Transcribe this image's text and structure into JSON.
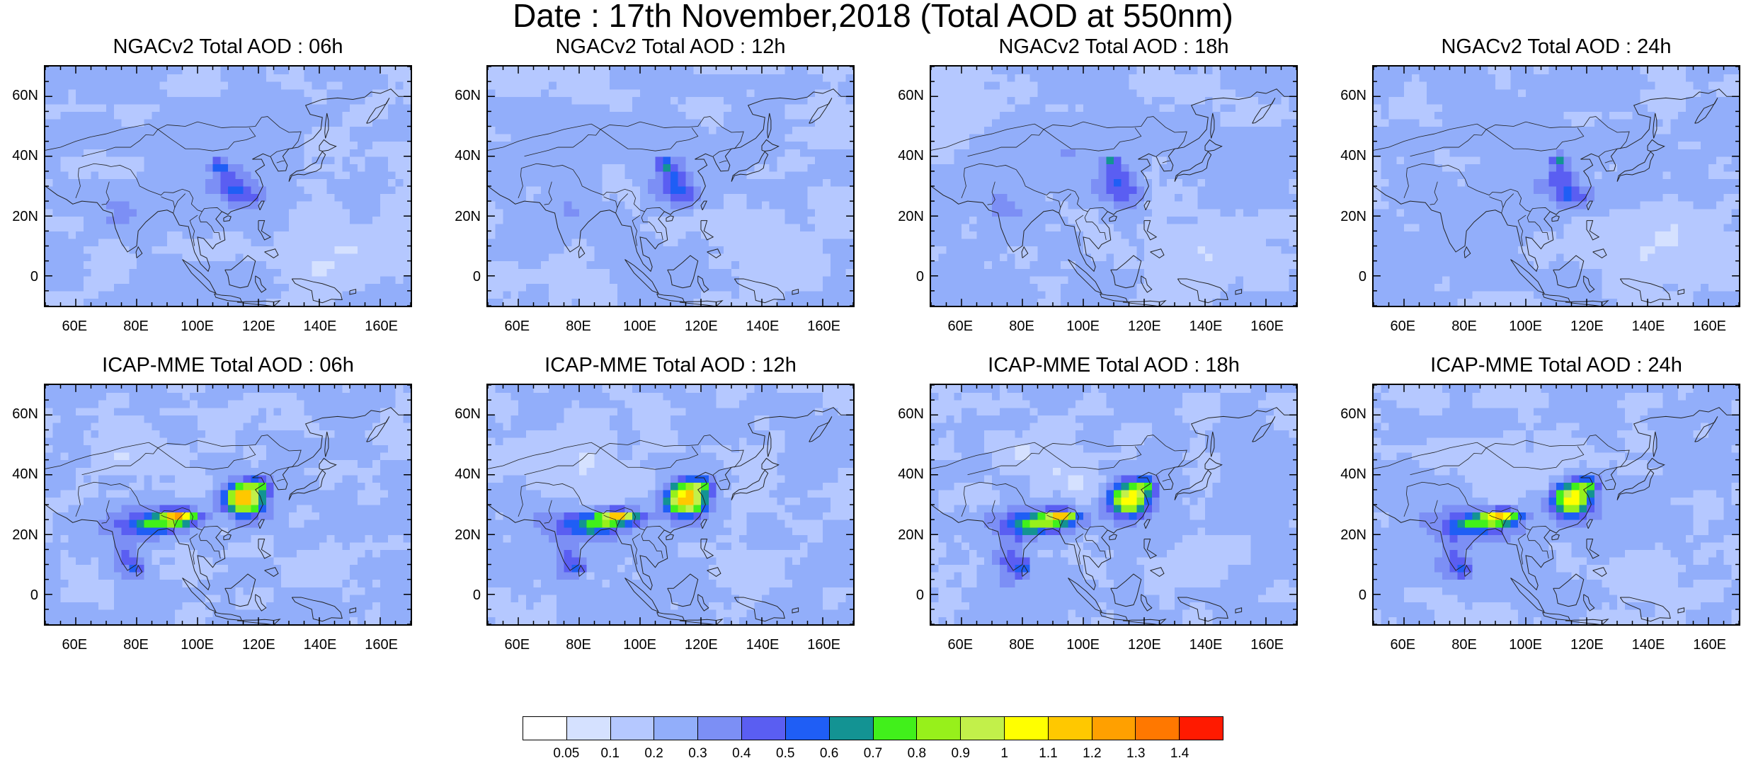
{
  "title": "Date : 17th November,2018 (Total AOD at 550nm)",
  "panels": [
    {
      "title": "NGACv2 Total AOD : 06h",
      "model": "NGACv2",
      "hour": "06h"
    },
    {
      "title": "NGACv2 Total AOD : 12h",
      "model": "NGACv2",
      "hour": "12h"
    },
    {
      "title": "NGACv2 Total AOD : 18h",
      "model": "NGACv2",
      "hour": "18h"
    },
    {
      "title": "NGACv2 Total AOD : 24h",
      "model": "NGACv2",
      "hour": "24h"
    },
    {
      "title": "ICAP-MME Total AOD : 06h",
      "model": "ICAP-MME",
      "hour": "06h"
    },
    {
      "title": "ICAP-MME Total AOD : 12h",
      "model": "ICAP-MME",
      "hour": "12h"
    },
    {
      "title": "ICAP-MME Total AOD : 18h",
      "model": "ICAP-MME",
      "hour": "18h"
    },
    {
      "title": "ICAP-MME Total AOD : 24h",
      "model": "ICAP-MME",
      "hour": "24h"
    }
  ],
  "axes": {
    "lon_range": [
      50,
      170
    ],
    "lat_range": [
      -10,
      70
    ],
    "y_ticks": [
      "60N",
      "40N",
      "20N",
      "0"
    ],
    "y_tick_values": [
      60,
      40,
      20,
      0
    ],
    "x_ticks": [
      "60E",
      "80E",
      "100E",
      "120E",
      "140E",
      "160E"
    ],
    "x_tick_values": [
      60,
      80,
      100,
      120,
      140,
      160
    ]
  },
  "colorbar": {
    "labels": [
      "0.05",
      "0.1",
      "0.2",
      "0.3",
      "0.4",
      "0.5",
      "0.6",
      "0.7",
      "0.8",
      "0.9",
      "1",
      "1.1",
      "1.2",
      "1.3",
      "1.4"
    ],
    "colors": [
      "#ffffff",
      "#d5e1ff",
      "#b5c8ff",
      "#92aefa",
      "#7c8ff5",
      "#5a5ef2",
      "#1f5ef5",
      "#139393",
      "#41f01b",
      "#97f01b",
      "#c2f04a",
      "#ffff00",
      "#ffc800",
      "#ffa000",
      "#ff7800",
      "#ff1a00"
    ]
  }
}
